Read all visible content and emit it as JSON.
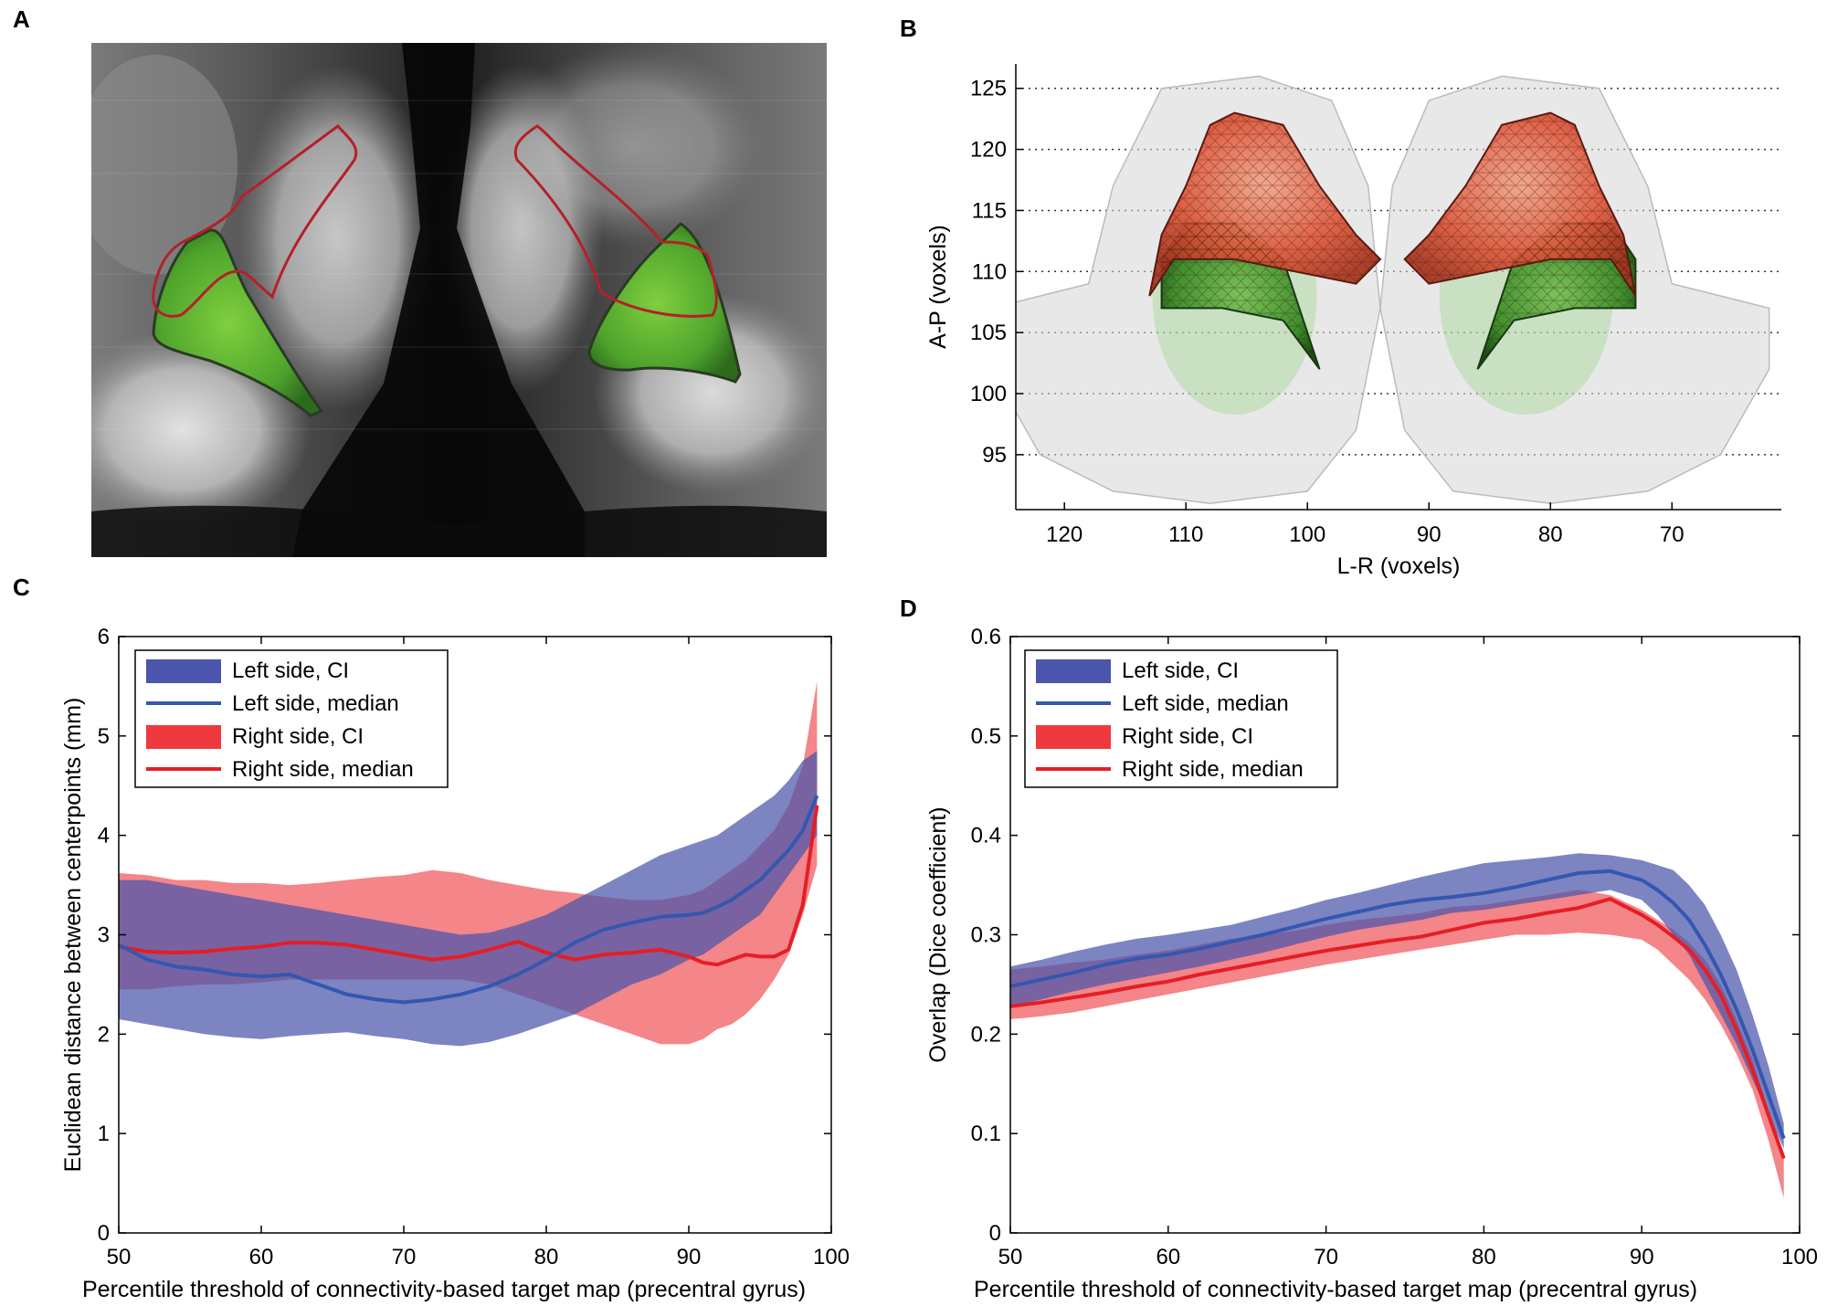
{
  "panels": {
    "A": {
      "label": "A"
    },
    "B": {
      "label": "B"
    },
    "C": {
      "label": "C"
    },
    "D": {
      "label": "D"
    }
  },
  "colors": {
    "blue_ci": "#4a55ab",
    "blue_line": "#3457b0",
    "red_ci": "#ee3a3f",
    "red_line": "#e41e26",
    "green": "#5db83a",
    "mesh_red": "#d94a2c",
    "contour": "#b5202a"
  },
  "chart_data": [
    {
      "id": "B",
      "type": "scatter",
      "title": "",
      "xlabel": "L-R (voxels)",
      "ylabel": "A-P (voxels)",
      "xlim": [
        124,
        61
      ],
      "ylim": [
        90.5,
        127
      ],
      "xticks": [
        120,
        110,
        100,
        90,
        80,
        70
      ],
      "yticks": [
        95,
        100,
        105,
        110,
        115,
        120,
        125
      ],
      "grid": "horizontal-dotted",
      "structures": [
        {
          "name": "left hull",
          "center": [
            106,
            107
          ]
        },
        {
          "name": "right hull",
          "center": [
            82,
            107
          ]
        },
        {
          "name": "left red mesh",
          "center": [
            104,
            114
          ]
        },
        {
          "name": "right red mesh",
          "center": [
            82,
            114
          ]
        },
        {
          "name": "left green mesh",
          "center": [
            105,
            108
          ]
        },
        {
          "name": "right green mesh",
          "center": [
            80,
            108
          ]
        }
      ]
    },
    {
      "id": "C",
      "type": "area",
      "xlabel": "Percentile threshold of connectivity-based target map (precentral gyrus)",
      "ylabel": "Euclidean distance between centerpoints (mm)",
      "xlim": [
        50,
        100
      ],
      "ylim": [
        0,
        6
      ],
      "xticks": [
        50,
        60,
        70,
        80,
        90,
        100
      ],
      "yticks": [
        0,
        1,
        2,
        3,
        4,
        5,
        6
      ],
      "legend_position": "top-left",
      "x": [
        50,
        52,
        54,
        56,
        58,
        60,
        62,
        64,
        66,
        68,
        70,
        72,
        74,
        76,
        78,
        80,
        82,
        84,
        86,
        88,
        90,
        91,
        92,
        93,
        94,
        95,
        96,
        97,
        98,
        99
      ],
      "series": [
        {
          "name": "Left side, CI",
          "kind": "band",
          "lower": [
            2.15,
            2.1,
            2.05,
            2.0,
            1.97,
            1.95,
            1.98,
            2.0,
            2.02,
            1.98,
            1.95,
            1.9,
            1.88,
            1.92,
            2.0,
            2.1,
            2.2,
            2.35,
            2.5,
            2.6,
            2.75,
            2.8,
            2.9,
            3.0,
            3.1,
            3.2,
            3.4,
            3.6,
            3.8,
            4.0
          ],
          "upper": [
            3.55,
            3.55,
            3.5,
            3.45,
            3.4,
            3.35,
            3.3,
            3.25,
            3.2,
            3.15,
            3.1,
            3.05,
            3.0,
            3.02,
            3.1,
            3.2,
            3.35,
            3.5,
            3.65,
            3.8,
            3.9,
            3.95,
            4.0,
            4.1,
            4.2,
            4.3,
            4.4,
            4.55,
            4.75,
            4.85
          ]
        },
        {
          "name": "Left side, median",
          "kind": "line",
          "values": [
            2.9,
            2.75,
            2.68,
            2.65,
            2.6,
            2.58,
            2.6,
            2.5,
            2.4,
            2.35,
            2.32,
            2.35,
            2.4,
            2.48,
            2.6,
            2.75,
            2.92,
            3.05,
            3.12,
            3.18,
            3.2,
            3.22,
            3.28,
            3.35,
            3.45,
            3.55,
            3.7,
            3.85,
            4.05,
            4.4
          ]
        },
        {
          "name": "Right side, CI",
          "kind": "band",
          "lower": [
            2.45,
            2.45,
            2.48,
            2.5,
            2.5,
            2.52,
            2.55,
            2.55,
            2.55,
            2.55,
            2.55,
            2.55,
            2.55,
            2.5,
            2.4,
            2.3,
            2.2,
            2.1,
            2.0,
            1.9,
            1.9,
            1.95,
            2.05,
            2.1,
            2.2,
            2.35,
            2.55,
            2.8,
            3.2,
            3.7
          ],
          "upper": [
            3.62,
            3.6,
            3.55,
            3.55,
            3.52,
            3.52,
            3.5,
            3.52,
            3.55,
            3.58,
            3.6,
            3.65,
            3.62,
            3.55,
            3.5,
            3.45,
            3.42,
            3.38,
            3.35,
            3.35,
            3.4,
            3.45,
            3.55,
            3.65,
            3.75,
            3.9,
            4.05,
            4.3,
            4.7,
            5.55
          ]
        },
        {
          "name": "Right side, median",
          "kind": "line",
          "values": [
            2.88,
            2.83,
            2.82,
            2.83,
            2.86,
            2.88,
            2.92,
            2.92,
            2.9,
            2.85,
            2.8,
            2.75,
            2.78,
            2.85,
            2.93,
            2.82,
            2.75,
            2.8,
            2.82,
            2.85,
            2.78,
            2.72,
            2.7,
            2.75,
            2.8,
            2.78,
            2.78,
            2.85,
            3.3,
            4.3
          ]
        }
      ]
    },
    {
      "id": "D",
      "type": "area",
      "xlabel": "Percentile threshold of connectivity-based target map (precentral gyrus)",
      "ylabel": "Overlap (Dice coefficient)",
      "xlim": [
        50,
        100
      ],
      "ylim": [
        0,
        0.6
      ],
      "xticks": [
        50,
        60,
        70,
        80,
        90,
        100
      ],
      "yticks": [
        0,
        0.1,
        0.2,
        0.3,
        0.4,
        0.5,
        0.6
      ],
      "legend_position": "top-left",
      "x": [
        50,
        52,
        54,
        56,
        58,
        60,
        62,
        64,
        66,
        68,
        70,
        72,
        74,
        76,
        78,
        80,
        82,
        84,
        86,
        88,
        90,
        91,
        92,
        93,
        94,
        95,
        96,
        97,
        98,
        99
      ],
      "series": [
        {
          "name": "Left side, CI",
          "kind": "band",
          "lower": [
            0.228,
            0.235,
            0.243,
            0.25,
            0.256,
            0.262,
            0.268,
            0.275,
            0.282,
            0.29,
            0.298,
            0.305,
            0.31,
            0.315,
            0.322,
            0.325,
            0.33,
            0.335,
            0.34,
            0.345,
            0.335,
            0.32,
            0.3,
            0.28,
            0.25,
            0.22,
            0.19,
            0.155,
            0.12,
            0.085
          ],
          "upper": [
            0.268,
            0.275,
            0.283,
            0.29,
            0.296,
            0.3,
            0.305,
            0.31,
            0.318,
            0.326,
            0.335,
            0.342,
            0.35,
            0.358,
            0.365,
            0.372,
            0.375,
            0.378,
            0.382,
            0.38,
            0.375,
            0.37,
            0.365,
            0.35,
            0.33,
            0.3,
            0.265,
            0.22,
            0.17,
            0.11
          ]
        },
        {
          "name": "Left side, median",
          "kind": "line",
          "values": [
            0.248,
            0.255,
            0.262,
            0.27,
            0.276,
            0.28,
            0.286,
            0.293,
            0.3,
            0.308,
            0.316,
            0.323,
            0.33,
            0.335,
            0.338,
            0.342,
            0.348,
            0.355,
            0.362,
            0.364,
            0.355,
            0.345,
            0.332,
            0.315,
            0.29,
            0.26,
            0.225,
            0.185,
            0.14,
            0.095
          ]
        },
        {
          "name": "Right side, CI",
          "kind": "band",
          "lower": [
            0.215,
            0.218,
            0.222,
            0.228,
            0.234,
            0.24,
            0.246,
            0.252,
            0.258,
            0.264,
            0.27,
            0.275,
            0.28,
            0.285,
            0.29,
            0.295,
            0.3,
            0.3,
            0.302,
            0.3,
            0.295,
            0.285,
            0.27,
            0.255,
            0.235,
            0.21,
            0.18,
            0.145,
            0.095,
            0.035
          ],
          "upper": [
            0.265,
            0.268,
            0.272,
            0.275,
            0.28,
            0.284,
            0.29,
            0.296,
            0.3,
            0.304,
            0.31,
            0.315,
            0.318,
            0.322,
            0.328,
            0.33,
            0.335,
            0.34,
            0.345,
            0.34,
            0.325,
            0.315,
            0.305,
            0.292,
            0.275,
            0.25,
            0.215,
            0.175,
            0.125,
            0.08
          ]
        },
        {
          "name": "Right side, median",
          "kind": "line",
          "values": [
            0.228,
            0.232,
            0.237,
            0.242,
            0.248,
            0.253,
            0.26,
            0.266,
            0.272,
            0.278,
            0.284,
            0.289,
            0.294,
            0.298,
            0.305,
            0.312,
            0.316,
            0.322,
            0.327,
            0.336,
            0.32,
            0.31,
            0.298,
            0.285,
            0.265,
            0.24,
            0.205,
            0.165,
            0.12,
            0.075
          ]
        }
      ]
    }
  ]
}
